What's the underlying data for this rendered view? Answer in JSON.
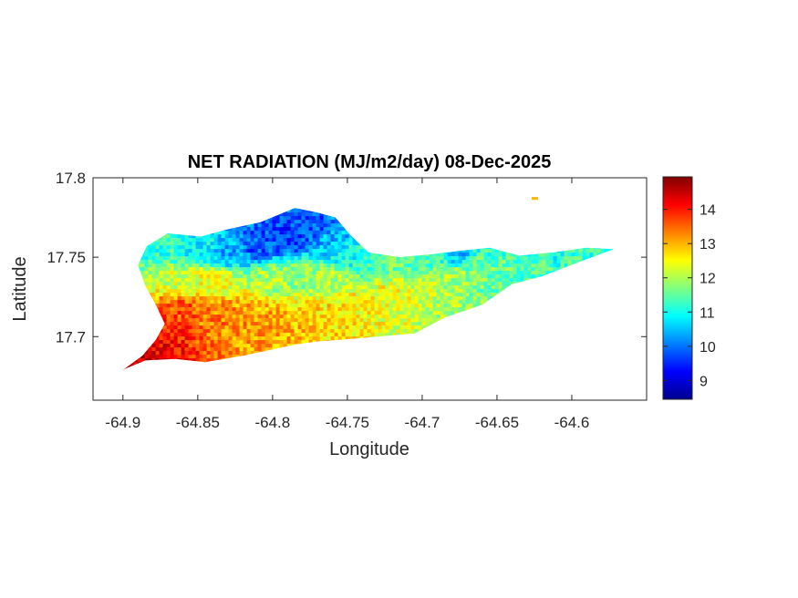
{
  "chart_data": {
    "type": "heatmap",
    "title": "NET RADIATION (MJ/m2/day) 08-Dec-2025",
    "xlabel": "Longitude",
    "ylabel": "Latitude",
    "xlim": [
      -64.92,
      -64.55
    ],
    "ylim": [
      17.66,
      17.8
    ],
    "xticks": [
      -64.9,
      -64.85,
      -64.8,
      -64.75,
      -64.7,
      -64.65,
      -64.6
    ],
    "xtick_labels": [
      "-64.9",
      "-64.85",
      "-64.8",
      "-64.75",
      "-64.7",
      "-64.65",
      "-64.6"
    ],
    "yticks": [
      17.7,
      17.75,
      17.8
    ],
    "ytick_labels": [
      "17.7",
      "17.75",
      "17.8"
    ],
    "colormap": "jet",
    "colorbar": {
      "range": [
        8.45,
        14.95
      ],
      "ticks": [
        9,
        10,
        11,
        12,
        13,
        14
      ],
      "tick_labels": [
        "9",
        "10",
        "11",
        "12",
        "13",
        "14"
      ],
      "colors": [
        "#00008f",
        "#0000ff",
        "#0080ff",
        "#00ffff",
        "#80ff80",
        "#ffff00",
        "#ff8000",
        "#ff0000",
        "#800000"
      ]
    },
    "region_outline": [
      [
        -64.9,
        17.679
      ],
      [
        -64.887,
        17.688
      ],
      [
        -64.878,
        17.698
      ],
      [
        -64.872,
        17.708
      ],
      [
        -64.878,
        17.72
      ],
      [
        -64.885,
        17.732
      ],
      [
        -64.89,
        17.745
      ],
      [
        -64.884,
        17.757
      ],
      [
        -64.87,
        17.765
      ],
      [
        -64.848,
        17.763
      ],
      [
        -64.828,
        17.768
      ],
      [
        -64.808,
        17.772
      ],
      [
        -64.785,
        17.781
      ],
      [
        -64.77,
        17.778
      ],
      [
        -64.758,
        17.775
      ],
      [
        -64.748,
        17.764
      ],
      [
        -64.736,
        17.753
      ],
      [
        -64.715,
        17.75
      ],
      [
        -64.693,
        17.752
      ],
      [
        -64.675,
        17.754
      ],
      [
        -64.655,
        17.756
      ],
      [
        -64.635,
        17.751
      ],
      [
        -64.612,
        17.753
      ],
      [
        -64.59,
        17.756
      ],
      [
        -64.572,
        17.755
      ],
      [
        -64.595,
        17.747
      ],
      [
        -64.62,
        17.738
      ],
      [
        -64.64,
        17.733
      ],
      [
        -64.66,
        17.72
      ],
      [
        -64.685,
        17.712
      ],
      [
        -64.705,
        17.702
      ],
      [
        -64.73,
        17.7
      ],
      [
        -64.755,
        17.698
      ],
      [
        -64.77,
        17.697
      ],
      [
        -64.785,
        17.695
      ],
      [
        -64.8,
        17.692
      ],
      [
        -64.82,
        17.688
      ],
      [
        -64.845,
        17.684
      ],
      [
        -64.865,
        17.686
      ],
      [
        -64.885,
        17.685
      ],
      [
        -64.898,
        17.68
      ]
    ],
    "value_field": [
      {
        "lon": -64.895,
        "lat": 17.684,
        "value": 14.5
      },
      {
        "lon": -64.88,
        "lat": 17.695,
        "value": 14.2
      },
      {
        "lon": -64.87,
        "lat": 17.705,
        "value": 13.9
      },
      {
        "lon": -64.86,
        "lat": 17.715,
        "value": 13.6
      },
      {
        "lon": -64.84,
        "lat": 17.712,
        "value": 13.3
      },
      {
        "lon": -64.82,
        "lat": 17.712,
        "value": 13.2
      },
      {
        "lon": -64.8,
        "lat": 17.708,
        "value": 13.1
      },
      {
        "lon": -64.78,
        "lat": 17.71,
        "value": 12.9
      },
      {
        "lon": -64.76,
        "lat": 17.715,
        "value": 12.7
      },
      {
        "lon": -64.74,
        "lat": 17.72,
        "value": 12.5
      },
      {
        "lon": -64.72,
        "lat": 17.728,
        "value": 12.4
      },
      {
        "lon": -64.7,
        "lat": 17.732,
        "value": 12.2
      },
      {
        "lon": -64.68,
        "lat": 17.738,
        "value": 11.9
      },
      {
        "lon": -64.66,
        "lat": 17.743,
        "value": 11.6
      },
      {
        "lon": -64.64,
        "lat": 17.745,
        "value": 11.5
      },
      {
        "lon": -64.62,
        "lat": 17.747,
        "value": 11.4
      },
      {
        "lon": -64.6,
        "lat": 17.75,
        "value": 11.3
      },
      {
        "lon": -64.58,
        "lat": 17.753,
        "value": 11.2
      },
      {
        "lon": -64.86,
        "lat": 17.735,
        "value": 12.2
      },
      {
        "lon": -64.87,
        "lat": 17.755,
        "value": 11.2
      },
      {
        "lon": -64.85,
        "lat": 17.755,
        "value": 10.9
      },
      {
        "lon": -64.83,
        "lat": 17.753,
        "value": 10.4
      },
      {
        "lon": -64.81,
        "lat": 17.758,
        "value": 9.8
      },
      {
        "lon": -64.79,
        "lat": 17.763,
        "value": 9.6
      },
      {
        "lon": -64.775,
        "lat": 17.768,
        "value": 9.8
      },
      {
        "lon": -64.76,
        "lat": 17.76,
        "value": 10.4
      },
      {
        "lon": -64.75,
        "lat": 17.752,
        "value": 10.9
      },
      {
        "lon": -64.735,
        "lat": 17.748,
        "value": 11.3
      },
      {
        "lon": -64.72,
        "lat": 17.745,
        "value": 11.6
      },
      {
        "lon": -64.7,
        "lat": 17.748,
        "value": 11.4
      },
      {
        "lon": -64.675,
        "lat": 17.752,
        "value": 10.6
      },
      {
        "lon": -64.655,
        "lat": 17.752,
        "value": 11.3
      },
      {
        "lon": -64.63,
        "lat": 17.75,
        "value": 11.1
      },
      {
        "lon": -64.61,
        "lat": 17.752,
        "value": 11.0
      },
      {
        "lon": -64.8,
        "lat": 17.735,
        "value": 12.0
      },
      {
        "lon": -64.78,
        "lat": 17.738,
        "value": 11.8
      },
      {
        "lon": -64.76,
        "lat": 17.735,
        "value": 12.0
      },
      {
        "lon": -64.84,
        "lat": 17.735,
        "value": 12.4
      },
      {
        "lon": -64.625,
        "lat": 17.787,
        "value": 13.0
      }
    ]
  }
}
